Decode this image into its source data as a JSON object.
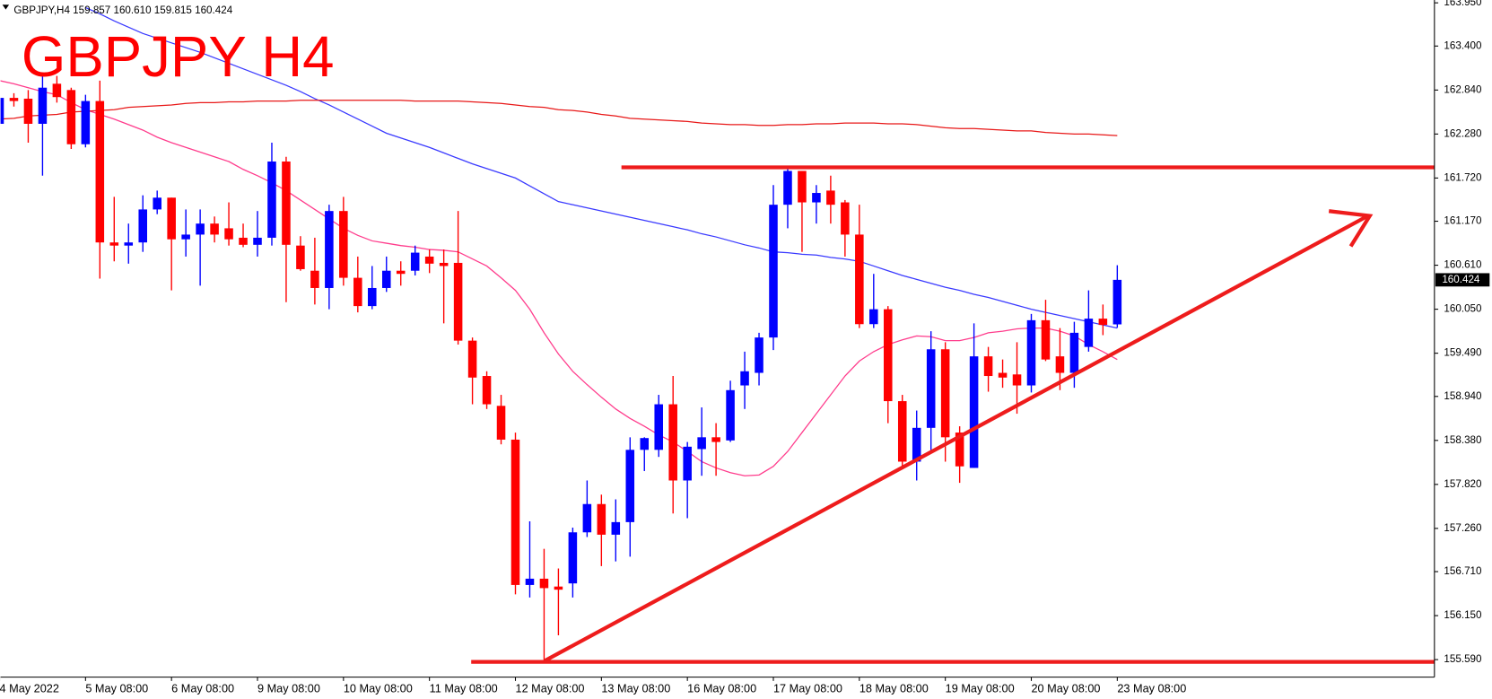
{
  "chart_data": {
    "type": "candlestick",
    "title": "GBPJPY H4",
    "symbol_info": "GBPJPY,H4  159.857 160.610 159.815 160.424",
    "categories": [
      "4 May 2022",
      null,
      null,
      null,
      null,
      null,
      "5 May 08:00",
      null,
      null,
      null,
      null,
      null,
      "6 May 08:00",
      null,
      null,
      null,
      null,
      null,
      "9 May 08:00",
      null,
      null,
      null,
      null,
      null,
      "10 May 08:00",
      null,
      null,
      null,
      null,
      null,
      "11 May 08:00",
      null,
      null,
      null,
      null,
      null,
      "12 May 08:00",
      null,
      null,
      null,
      null,
      null,
      "13 May 08:00",
      null,
      null,
      null,
      null,
      null,
      "16 May 08:00",
      null,
      null,
      null,
      null,
      null,
      "17 May 08:00",
      null,
      null,
      null,
      null,
      null,
      "18 May 08:00",
      null,
      null,
      null,
      null,
      null,
      "19 May 08:00",
      null,
      null,
      null,
      null,
      null,
      "20 May 08:00",
      null,
      null,
      null,
      null,
      null,
      "23 May 08:00"
    ],
    "open": [
      162.41,
      162.74,
      162.73,
      162.41,
      162.92,
      162.84,
      162.15,
      162.7,
      160.9,
      160.86,
      160.9,
      161.32,
      161.47,
      160.94,
      161.0,
      161.14,
      161.08,
      160.96,
      160.87,
      160.96,
      161.93,
      160.86,
      160.54,
      160.32,
      161.3,
      160.45,
      160.09,
      160.32,
      160.54,
      160.54,
      160.72,
      160.64,
      160.64,
      159.65,
      159.2,
      158.82,
      158.39,
      156.54,
      156.62,
      156.52,
      156.56,
      157.21,
      157.57,
      157.18,
      157.34,
      158.26,
      158.26,
      158.84,
      157.87,
      158.27,
      158.42,
      158.38,
      159.08,
      159.24,
      159.69,
      161.38,
      161.81,
      161.41,
      161.56,
      161.41,
      161.0,
      159.86,
      160.05,
      158.88,
      158.11,
      158.54,
      159.54,
      158.48,
      158.03,
      159.45,
      159.24,
      159.22,
      159.08,
      159.91,
      159.45,
      159.24,
      159.57,
      159.93,
      159.857
    ],
    "high": [
      162.84,
      162.8,
      162.84,
      163.02,
      163.02,
      162.87,
      162.78,
      162.96,
      161.48,
      161.14,
      161.5,
      161.56,
      161.47,
      161.32,
      161.32,
      161.23,
      161.41,
      161.14,
      161.3,
      162.17,
      161.99,
      160.98,
      160.96,
      161.38,
      161.48,
      160.72,
      160.6,
      160.72,
      160.66,
      160.86,
      160.81,
      160.81,
      161.3,
      159.69,
      159.26,
      158.96,
      158.48,
      157.35,
      157.0,
      156.75,
      157.27,
      157.87,
      157.69,
      157.63,
      158.42,
      158.42,
      158.96,
      159.2,
      158.36,
      158.8,
      158.6,
      159.14,
      159.51,
      159.75,
      161.63,
      161.87,
      161.81,
      161.63,
      161.75,
      161.44,
      161.38,
      160.5,
      160.09,
      158.96,
      158.76,
      159.77,
      159.63,
      158.56,
      159.87,
      159.57,
      159.41,
      159.63,
      159.99,
      160.17,
      159.81,
      159.89,
      160.29,
      160.11,
      160.61
    ],
    "low": [
      162.35,
      162.63,
      162.17,
      161.75,
      162.68,
      162.09,
      162.11,
      160.44,
      160.66,
      160.63,
      160.78,
      161.26,
      160.29,
      160.72,
      160.35,
      160.9,
      160.86,
      160.84,
      160.72,
      160.86,
      160.14,
      160.54,
      160.11,
      160.05,
      160.35,
      160.01,
      160.05,
      160.27,
      160.35,
      160.48,
      160.51,
      159.87,
      159.6,
      158.84,
      158.78,
      158.33,
      156.42,
      156.38,
      155.57,
      155.9,
      156.38,
      157.15,
      156.78,
      156.84,
      156.9,
      157.99,
      158.17,
      157.45,
      157.39,
      157.93,
      157.93,
      158.36,
      158.78,
      159.08,
      159.53,
      161.08,
      160.78,
      161.14,
      161.14,
      160.72,
      159.81,
      159.81,
      158.6,
      158.03,
      157.87,
      158.24,
      158.11,
      157.84,
      158.03,
      159.0,
      159.05,
      158.72,
      158.99,
      159.39,
      159.02,
      159.05,
      159.51,
      159.72,
      159.815
    ],
    "close": [
      162.74,
      162.7,
      162.41,
      162.87,
      162.75,
      162.15,
      162.7,
      160.9,
      160.86,
      160.9,
      161.32,
      161.47,
      160.94,
      161.0,
      161.14,
      161.0,
      160.94,
      160.87,
      160.96,
      161.93,
      160.87,
      160.56,
      160.32,
      161.3,
      160.45,
      160.09,
      160.32,
      160.54,
      160.5,
      160.77,
      160.63,
      160.6,
      159.65,
      159.18,
      158.84,
      158.39,
      156.54,
      156.62,
      156.5,
      156.48,
      157.21,
      157.57,
      157.18,
      157.34,
      158.26,
      158.41,
      158.84,
      157.87,
      158.3,
      158.42,
      158.36,
      159.02,
      159.26,
      159.69,
      161.38,
      161.81,
      161.41,
      161.53,
      161.38,
      161.0,
      159.86,
      160.05,
      158.88,
      158.11,
      158.54,
      159.54,
      158.42,
      158.05,
      159.45,
      159.2,
      159.18,
      159.08,
      159.91,
      159.41,
      159.24,
      159.75,
      159.93,
      159.85,
      160.424
    ],
    "up_color": "#0000ff",
    "down_color": "#ff0000",
    "lines": [
      {
        "color": "#3a3aff",
        "values": [
          null,
          null,
          null,
          null,
          null,
          null,
          163.89,
          163.81,
          163.72,
          163.64,
          163.56,
          163.5,
          163.44,
          163.38,
          163.32,
          163.25,
          163.18,
          163.11,
          163.04,
          162.97,
          162.9,
          162.82,
          162.73,
          162.65,
          162.56,
          162.47,
          162.38,
          162.29,
          162.23,
          162.17,
          162.11,
          162.04,
          161.97,
          161.9,
          161.84,
          161.78,
          161.72,
          161.62,
          161.52,
          161.42,
          161.38,
          161.34,
          161.3,
          161.26,
          161.22,
          161.18,
          161.14,
          161.1,
          161.06,
          161.01,
          160.97,
          160.92,
          160.87,
          160.83,
          160.78,
          160.77,
          160.75,
          160.74,
          160.71,
          160.69,
          160.66,
          160.6,
          160.54,
          160.48,
          160.43,
          160.38,
          160.33,
          160.29,
          160.24,
          160.2,
          160.15,
          160.1,
          160.05,
          160.01,
          159.97,
          159.93,
          159.89,
          159.85,
          159.81
        ]
      },
      {
        "color": "#ff3c8c",
        "values": [
          162.96,
          162.92,
          162.87,
          162.82,
          162.78,
          162.68,
          162.59,
          162.53,
          162.47,
          162.4,
          162.33,
          162.24,
          162.17,
          162.11,
          162.05,
          161.99,
          161.93,
          161.83,
          161.75,
          161.66,
          161.56,
          161.44,
          161.32,
          161.2,
          161.08,
          160.99,
          160.92,
          160.89,
          160.86,
          160.84,
          160.81,
          160.8,
          160.78,
          160.69,
          160.6,
          160.45,
          160.29,
          160.05,
          159.75,
          159.48,
          159.26,
          159.09,
          158.93,
          158.78,
          158.66,
          158.56,
          158.45,
          158.36,
          158.24,
          158.11,
          158.03,
          157.97,
          157.93,
          157.94,
          158.05,
          158.24,
          158.48,
          158.72,
          158.96,
          159.2,
          159.39,
          159.51,
          159.6,
          159.66,
          159.71,
          159.7,
          159.65,
          159.65,
          159.69,
          159.75,
          159.77,
          159.8,
          159.81,
          159.81,
          159.77,
          159.71,
          159.6,
          159.51,
          159.41
        ]
      },
      {
        "color": "#e81818",
        "values": [
          162.47,
          162.48,
          162.51,
          162.52,
          162.53,
          162.56,
          162.57,
          162.58,
          162.59,
          162.62,
          162.63,
          162.64,
          162.65,
          162.67,
          162.68,
          162.68,
          162.69,
          162.69,
          162.7,
          162.7,
          162.7,
          162.71,
          162.71,
          162.71,
          162.71,
          162.71,
          162.71,
          162.71,
          162.71,
          162.7,
          162.7,
          162.7,
          162.7,
          162.69,
          162.68,
          162.67,
          162.65,
          162.63,
          162.62,
          162.59,
          162.58,
          162.56,
          162.53,
          162.51,
          162.48,
          162.47,
          162.46,
          162.45,
          162.44,
          162.42,
          162.41,
          162.4,
          162.4,
          162.39,
          162.39,
          162.4,
          162.4,
          162.41,
          162.41,
          162.42,
          162.42,
          162.42,
          162.41,
          162.41,
          162.4,
          162.38,
          162.36,
          162.35,
          162.35,
          162.34,
          162.33,
          162.32,
          162.32,
          162.3,
          162.29,
          162.28,
          162.28,
          162.27,
          162.26
        ]
      }
    ],
    "ylim": [
      155.367,
      163.986
    ],
    "yticks": [
      {
        "value": 163.95,
        "label": "163.950"
      },
      {
        "value": 163.4,
        "label": "163.400"
      },
      {
        "value": 162.84,
        "label": "162.840"
      },
      {
        "value": 162.28,
        "label": "162.280"
      },
      {
        "value": 161.72,
        "label": "161.720"
      },
      {
        "value": 161.17,
        "label": "161.170"
      },
      {
        "value": 160.61,
        "label": "160.610"
      },
      {
        "value": 160.05,
        "label": "160.050"
      },
      {
        "value": 159.49,
        "label": "159.490"
      },
      {
        "value": 158.94,
        "label": "158.940"
      },
      {
        "value": 158.38,
        "label": "158.380"
      },
      {
        "value": 157.82,
        "label": "157.820"
      },
      {
        "value": 157.26,
        "label": "157.260"
      },
      {
        "value": 156.71,
        "label": "156.710"
      },
      {
        "value": 156.15,
        "label": "156.150"
      },
      {
        "value": 155.59,
        "label": "155.590"
      }
    ],
    "price_marker": {
      "value": 160.424,
      "label": "160.424"
    },
    "title_color": "#ff0000"
  }
}
